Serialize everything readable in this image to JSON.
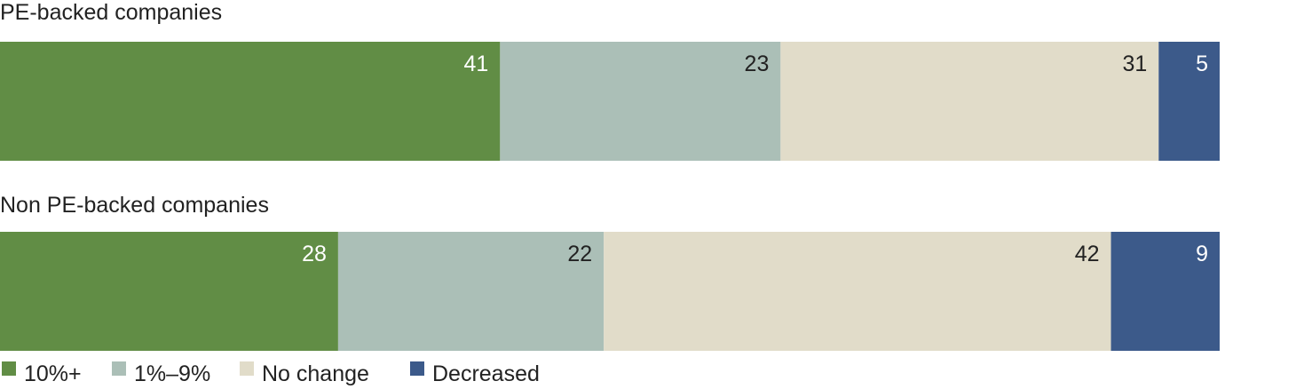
{
  "chart_data": {
    "type": "bar",
    "orientation": "horizontal",
    "stacked": true,
    "categories": [
      "PE-backed companies",
      "Non PE-backed companies"
    ],
    "series": [
      {
        "name": "10%+",
        "values": [
          41,
          28
        ],
        "color": "#618d45",
        "label_color": "#ffffff"
      },
      {
        "name": "1%–9%",
        "values": [
          23,
          22
        ],
        "color": "#abbfb7",
        "label_color": "#222222"
      },
      {
        "name": "No change",
        "values": [
          31,
          42
        ],
        "color": "#e1dcc9",
        "label_color": "#222222"
      },
      {
        "name": "Decreased",
        "values": [
          5,
          9
        ],
        "color": "#3c5a8a",
        "label_color": "#ffffff"
      }
    ],
    "title": "",
    "xlabel": "",
    "ylabel": "",
    "legend_position": "bottom-left",
    "grid": false
  }
}
